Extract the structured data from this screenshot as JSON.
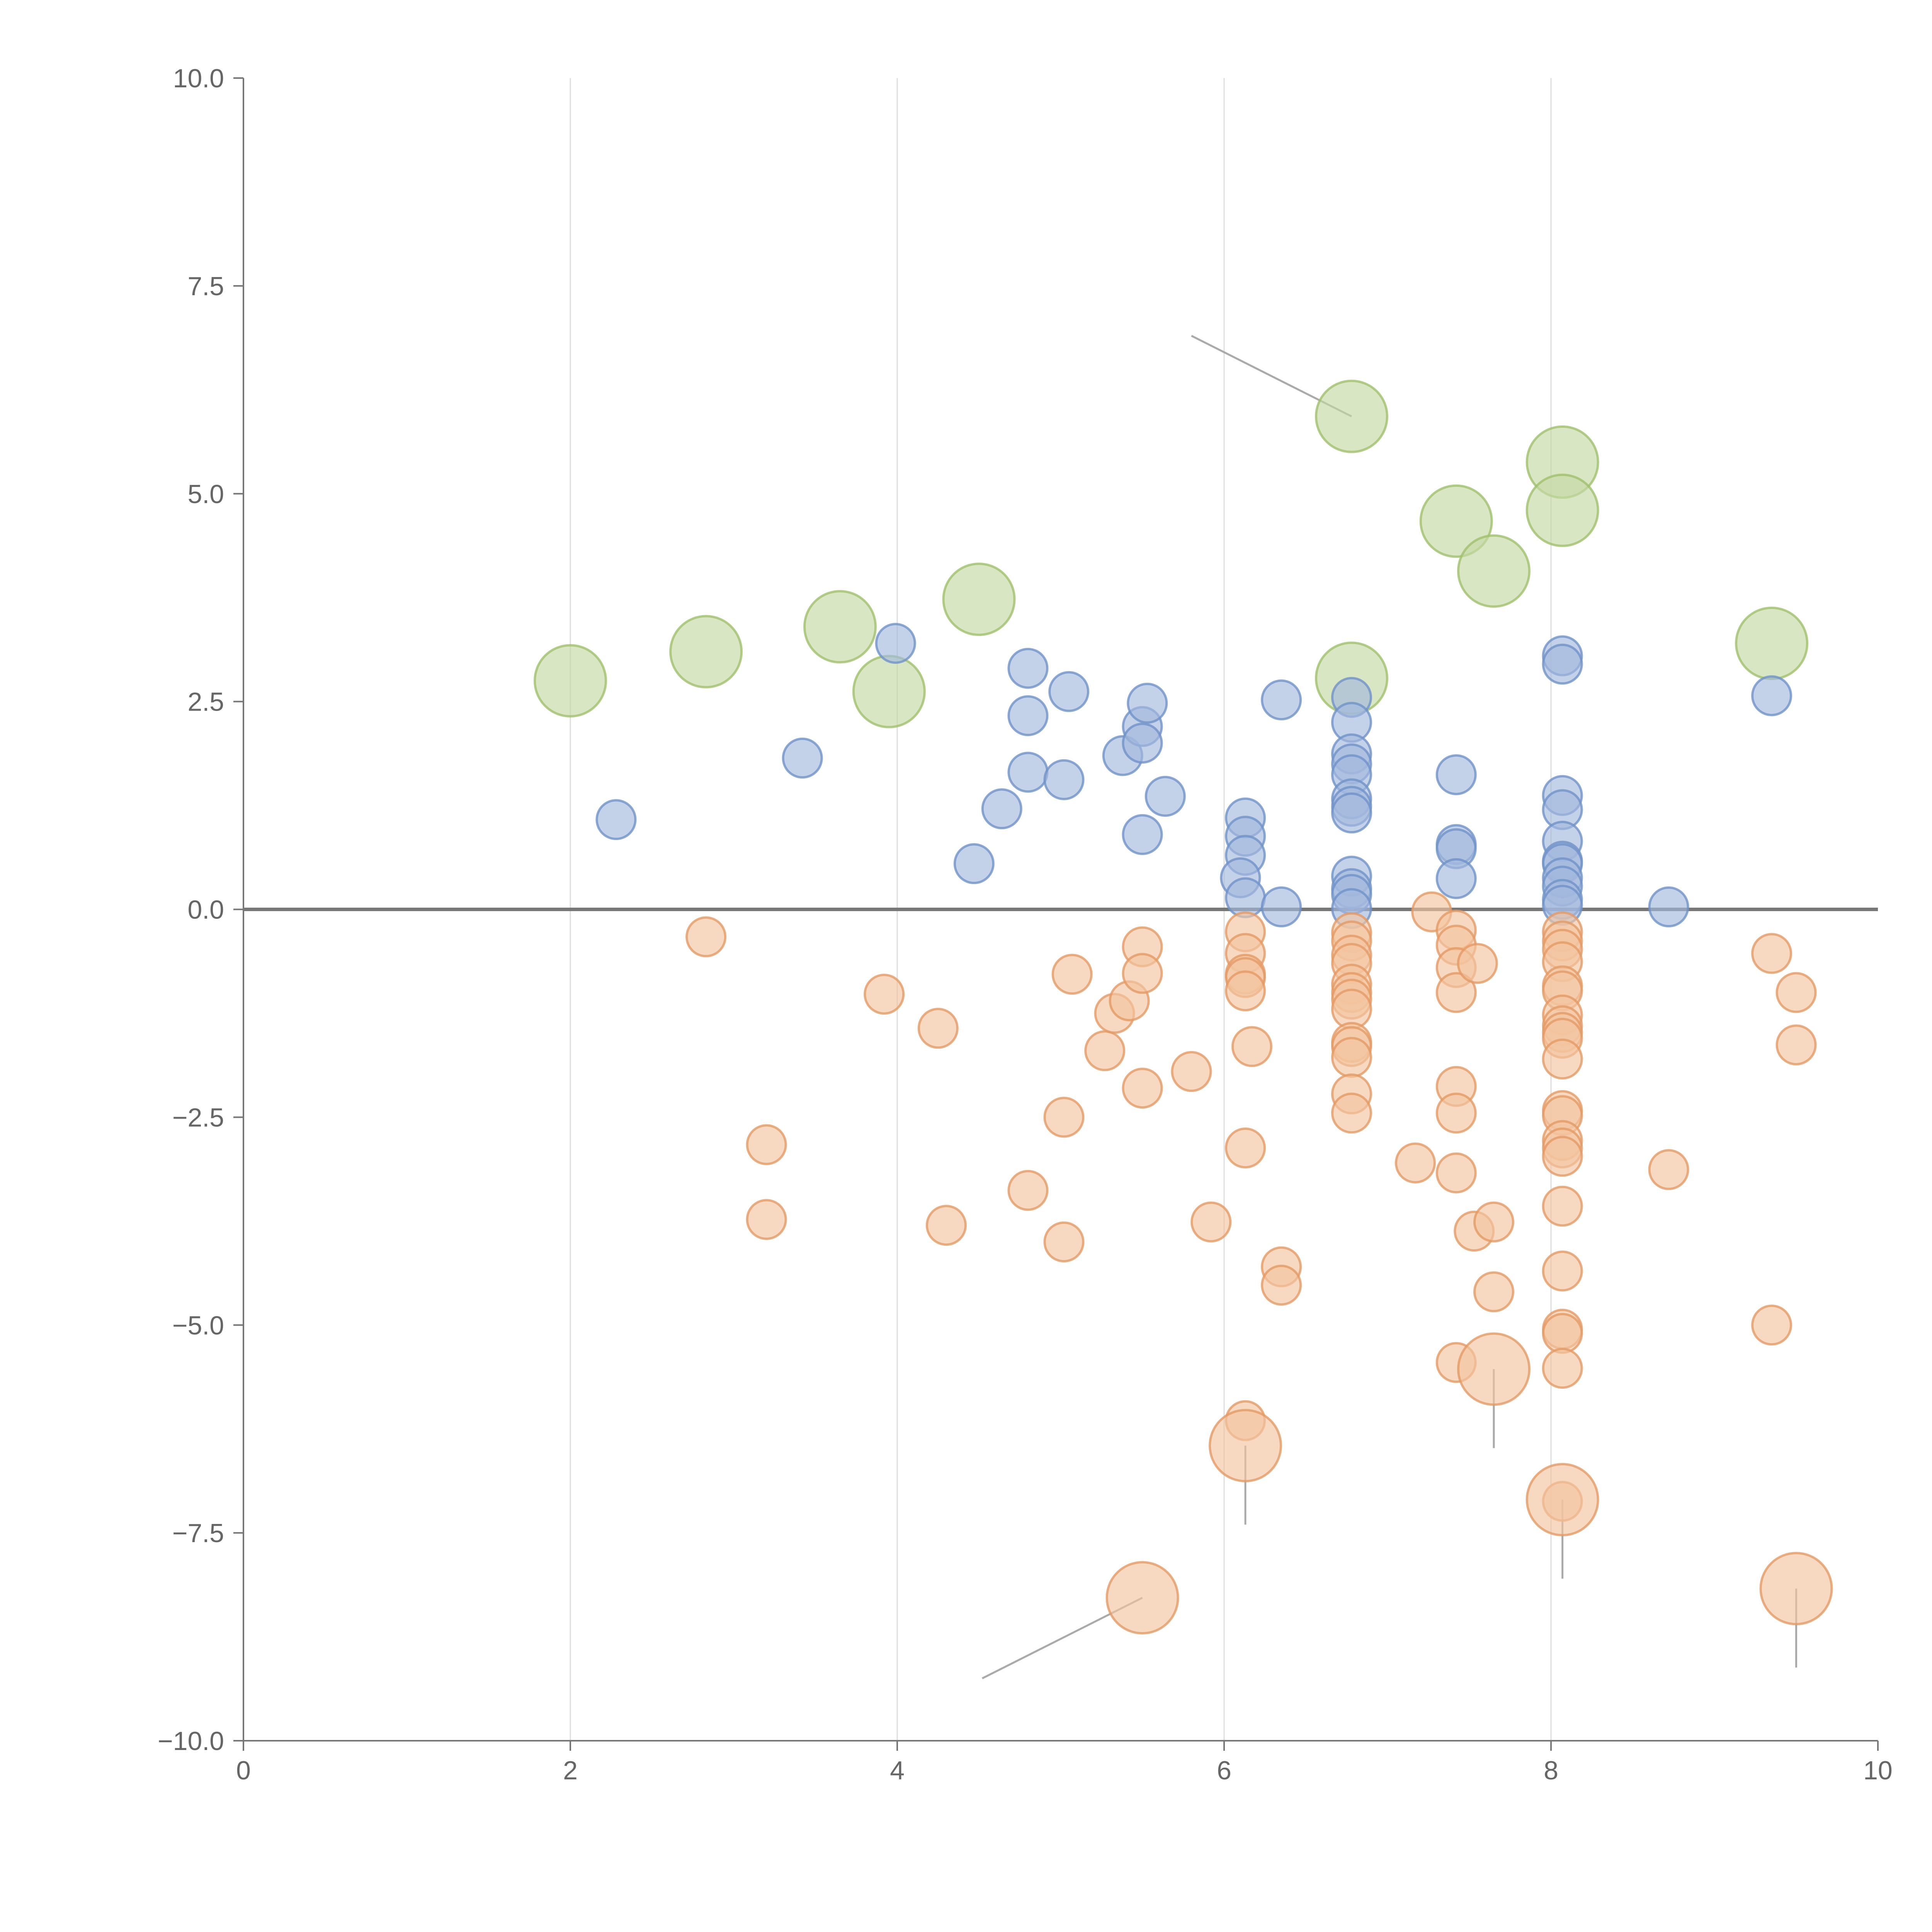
{
  "chart_data": {
    "type": "scatter",
    "title": "",
    "xlabel": "",
    "ylabel": "",
    "xlim": [
      0,
      10
    ],
    "ylim": [
      -10,
      10
    ],
    "xticks": [
      0,
      2,
      4,
      6,
      8,
      10
    ],
    "xtick_labels": [
      "0",
      "2",
      "4",
      "6",
      "8",
      "10"
    ],
    "yticks": [
      10,
      7.5,
      5,
      2.5,
      0,
      -2.5,
      -5,
      -7.5,
      -10
    ],
    "ytick_labels": [
      "10.0",
      "7.5",
      "5.0",
      "2.5",
      "0.0",
      "−2.5",
      "−5.0",
      "−7.5",
      "−10.0"
    ],
    "x_grid": true,
    "y_grid": false,
    "zero_line": true,
    "series": [
      {
        "color": "#c5d9a4",
        "stroke": "#9fc06b",
        "size_class": "large",
        "points": [
          {
            "x": 2.0,
            "y": 2.75
          },
          {
            "x": 2.83,
            "y": 3.1
          },
          {
            "x": 3.65,
            "y": 3.4
          },
          {
            "x": 3.95,
            "y": 2.62
          },
          {
            "x": 4.5,
            "y": 3.73
          },
          {
            "x": 6.78,
            "y": 5.93
          },
          {
            "x": 6.78,
            "y": 2.78
          },
          {
            "x": 7.42,
            "y": 4.67
          },
          {
            "x": 7.65,
            "y": 4.07
          },
          {
            "x": 8.07,
            "y": 5.38
          },
          {
            "x": 8.07,
            "y": 4.8
          },
          {
            "x": 9.35,
            "y": 3.2
          }
        ]
      },
      {
        "color": "#a3b9dd",
        "stroke": "#6f92c8",
        "size_class": "small",
        "points": [
          {
            "x": 2.28,
            "y": 1.08
          },
          {
            "x": 3.42,
            "y": 1.82
          },
          {
            "x": 3.99,
            "y": 3.2
          },
          {
            "x": 4.47,
            "y": 0.55
          },
          {
            "x": 4.64,
            "y": 1.21
          },
          {
            "x": 4.8,
            "y": 2.9
          },
          {
            "x": 4.8,
            "y": 2.33
          },
          {
            "x": 4.8,
            "y": 1.65
          },
          {
            "x": 5.02,
            "y": 1.56
          },
          {
            "x": 5.05,
            "y": 2.62
          },
          {
            "x": 5.38,
            "y": 1.85
          },
          {
            "x": 5.5,
            "y": 2.2
          },
          {
            "x": 5.5,
            "y": 2.0
          },
          {
            "x": 5.53,
            "y": 2.48
          },
          {
            "x": 5.5,
            "y": 0.9
          },
          {
            "x": 5.64,
            "y": 1.36
          },
          {
            "x": 6.13,
            "y": 1.1
          },
          {
            "x": 6.13,
            "y": 0.88
          },
          {
            "x": 6.13,
            "y": 0.65
          },
          {
            "x": 6.1,
            "y": 0.38
          },
          {
            "x": 6.13,
            "y": 0.14
          },
          {
            "x": 6.35,
            "y": 2.52
          },
          {
            "x": 6.35,
            "y": 0.03
          },
          {
            "x": 6.78,
            "y": 2.55
          },
          {
            "x": 6.78,
            "y": 2.25
          },
          {
            "x": 6.78,
            "y": 1.87
          },
          {
            "x": 6.78,
            "y": 1.75
          },
          {
            "x": 6.78,
            "y": 1.62
          },
          {
            "x": 6.78,
            "y": 1.33
          },
          {
            "x": 6.78,
            "y": 1.24
          },
          {
            "x": 6.78,
            "y": 1.16
          },
          {
            "x": 6.78,
            "y": 0.4
          },
          {
            "x": 6.78,
            "y": 0.25
          },
          {
            "x": 6.78,
            "y": 0.18
          },
          {
            "x": 6.78,
            "y": 0.01
          },
          {
            "x": 7.42,
            "y": 1.62
          },
          {
            "x": 7.42,
            "y": 0.78
          },
          {
            "x": 7.42,
            "y": 0.73
          },
          {
            "x": 7.42,
            "y": 0.37
          },
          {
            "x": 8.07,
            "y": 3.05
          },
          {
            "x": 8.07,
            "y": 2.95
          },
          {
            "x": 8.07,
            "y": 1.37
          },
          {
            "x": 8.07,
            "y": 1.2
          },
          {
            "x": 8.07,
            "y": 0.82
          },
          {
            "x": 8.07,
            "y": 0.58
          },
          {
            "x": 8.07,
            "y": 0.55
          },
          {
            "x": 8.07,
            "y": 0.38
          },
          {
            "x": 8.07,
            "y": 0.28
          },
          {
            "x": 8.07,
            "y": 0.12
          },
          {
            "x": 8.07,
            "y": 0.05
          },
          {
            "x": 8.72,
            "y": 0.03
          },
          {
            "x": 9.35,
            "y": 2.57
          }
        ]
      },
      {
        "color": "#f2c4a0",
        "stroke": "#e39a64",
        "size_class": "small",
        "points": [
          {
            "x": 2.83,
            "y": -0.33
          },
          {
            "x": 3.2,
            "y": -2.83
          },
          {
            "x": 3.2,
            "y": -3.73
          },
          {
            "x": 3.92,
            "y": -1.02
          },
          {
            "x": 4.25,
            "y": -1.43
          },
          {
            "x": 4.3,
            "y": -3.8
          },
          {
            "x": 4.8,
            "y": -3.38
          },
          {
            "x": 5.02,
            "y": -2.5
          },
          {
            "x": 5.02,
            "y": -4.0
          },
          {
            "x": 5.07,
            "y": -0.78
          },
          {
            "x": 5.27,
            "y": -1.7
          },
          {
            "x": 5.33,
            "y": -1.25
          },
          {
            "x": 5.42,
            "y": -1.1
          },
          {
            "x": 5.5,
            "y": -0.45
          },
          {
            "x": 5.5,
            "y": -0.77
          },
          {
            "x": 5.5,
            "y": -2.15
          },
          {
            "x": 5.8,
            "y": -1.95
          },
          {
            "x": 5.92,
            "y": -3.76
          },
          {
            "x": 6.13,
            "y": -0.27
          },
          {
            "x": 6.13,
            "y": -0.53
          },
          {
            "x": 6.13,
            "y": -0.78
          },
          {
            "x": 6.13,
            "y": -0.82
          },
          {
            "x": 6.13,
            "y": -0.98
          },
          {
            "x": 6.13,
            "y": -2.87
          },
          {
            "x": 6.17,
            "y": -1.65
          },
          {
            "x": 6.13,
            "y": -6.15
          },
          {
            "x": 6.35,
            "y": -4.3
          },
          {
            "x": 6.35,
            "y": -4.52
          },
          {
            "x": 6.78,
            "y": -0.28
          },
          {
            "x": 6.78,
            "y": -0.38
          },
          {
            "x": 6.78,
            "y": -0.55
          },
          {
            "x": 6.78,
            "y": -0.65
          },
          {
            "x": 6.78,
            "y": -0.9
          },
          {
            "x": 6.78,
            "y": -1.0
          },
          {
            "x": 6.78,
            "y": -1.08
          },
          {
            "x": 6.78,
            "y": -1.2
          },
          {
            "x": 6.78,
            "y": -1.6
          },
          {
            "x": 6.78,
            "y": -1.65
          },
          {
            "x": 6.78,
            "y": -1.78
          },
          {
            "x": 6.78,
            "y": -2.22
          },
          {
            "x": 6.78,
            "y": -2.45
          },
          {
            "x": 7.17,
            "y": -3.05
          },
          {
            "x": 7.27,
            "y": -0.03
          },
          {
            "x": 7.42,
            "y": -0.25
          },
          {
            "x": 7.42,
            "y": -0.43
          },
          {
            "x": 7.42,
            "y": -0.7
          },
          {
            "x": 7.42,
            "y": -1.0
          },
          {
            "x": 7.42,
            "y": -2.13
          },
          {
            "x": 7.42,
            "y": -2.45
          },
          {
            "x": 7.42,
            "y": -3.17
          },
          {
            "x": 7.42,
            "y": -5.45
          },
          {
            "x": 7.53,
            "y": -3.87
          },
          {
            "x": 7.55,
            "y": -0.65
          },
          {
            "x": 7.65,
            "y": -3.76
          },
          {
            "x": 7.65,
            "y": -4.6
          },
          {
            "x": 8.07,
            "y": -0.27
          },
          {
            "x": 8.07,
            "y": -0.38
          },
          {
            "x": 8.07,
            "y": -0.48
          },
          {
            "x": 8.07,
            "y": -0.63
          },
          {
            "x": 8.07,
            "y": -0.92
          },
          {
            "x": 8.07,
            "y": -0.98
          },
          {
            "x": 8.07,
            "y": -1.27
          },
          {
            "x": 8.07,
            "y": -1.4
          },
          {
            "x": 8.07,
            "y": -1.48
          },
          {
            "x": 8.07,
            "y": -1.55
          },
          {
            "x": 8.07,
            "y": -1.8
          },
          {
            "x": 8.07,
            "y": -2.42
          },
          {
            "x": 8.07,
            "y": -2.48
          },
          {
            "x": 8.07,
            "y": -2.78
          },
          {
            "x": 8.07,
            "y": -2.87
          },
          {
            "x": 8.07,
            "y": -2.97
          },
          {
            "x": 8.07,
            "y": -3.57
          },
          {
            "x": 8.07,
            "y": -4.35
          },
          {
            "x": 8.07,
            "y": -5.05
          },
          {
            "x": 8.07,
            "y": -5.1
          },
          {
            "x": 8.07,
            "y": -5.52
          },
          {
            "x": 8.07,
            "y": -7.12
          },
          {
            "x": 8.72,
            "y": -3.13
          },
          {
            "x": 9.35,
            "y": -0.53
          },
          {
            "x": 9.35,
            "y": -5.0
          },
          {
            "x": 9.5,
            "y": -1.0
          },
          {
            "x": 9.5,
            "y": -1.63
          }
        ]
      },
      {
        "color": "#f2c4a0",
        "stroke": "#e39a64",
        "size_class": "large",
        "points": [
          {
            "x": 5.5,
            "y": -8.28
          },
          {
            "x": 6.13,
            "y": -6.45
          },
          {
            "x": 7.65,
            "y": -5.53
          },
          {
            "x": 8.07,
            "y": -7.1
          },
          {
            "x": 9.5,
            "y": -8.17
          }
        ]
      }
    ],
    "leader_lines": [
      {
        "from": [
          6.78,
          5.93
        ],
        "to": [
          5.8,
          6.9
        ],
        "color": "#aaaaaa"
      },
      {
        "from": [
          5.5,
          -8.28
        ],
        "to": [
          4.52,
          -9.25
        ],
        "color": "#aaaaaa"
      },
      {
        "from": [
          6.13,
          -6.45
        ],
        "to": [
          6.13,
          -7.4
        ],
        "color": "#aaaaaa"
      },
      {
        "from": [
          7.65,
          -5.53
        ],
        "to": [
          7.65,
          -6.48
        ],
        "color": "#aaaaaa"
      },
      {
        "from": [
          8.07,
          -7.1
        ],
        "to": [
          8.07,
          -8.05
        ],
        "color": "#aaaaaa"
      },
      {
        "from": [
          9.5,
          -8.17
        ],
        "to": [
          9.5,
          -9.12
        ],
        "color": "#aaaaaa"
      }
    ]
  }
}
